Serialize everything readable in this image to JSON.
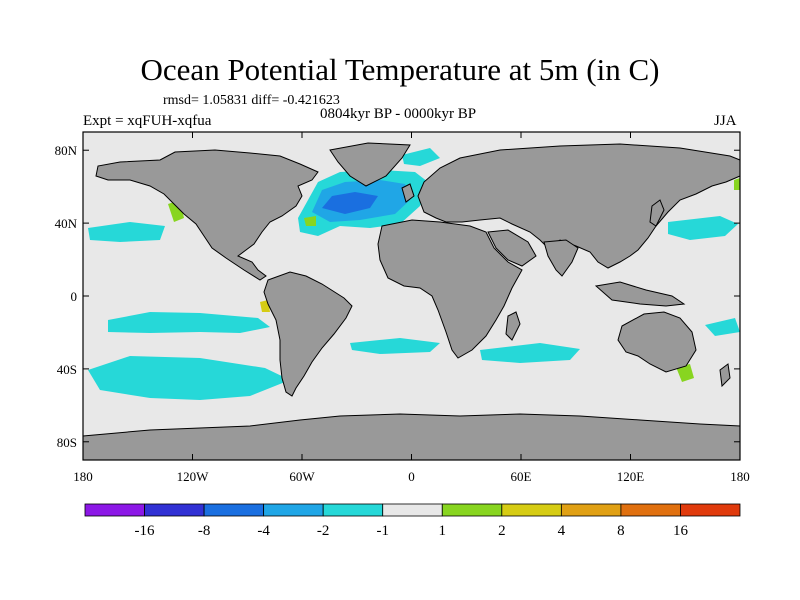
{
  "header": {
    "title": "Ocean Potential Temperature at 5m (in C)",
    "stats": "rmsd= 1.05831 diff= -0.421623",
    "experiment": "Expt = xqFUH-xqfua",
    "period": "0804kyr BP - 0000kyr BP",
    "season": "JJA"
  },
  "colors": {
    "ocean_neutral": "#e8e8e8",
    "land": "#999999",
    "coast": "#000000"
  },
  "chart_data": {
    "type": "heatmap",
    "title": "Ocean Potential Temperature at 5m (in C)",
    "xlabel": "",
    "ylabel": "",
    "xlim": [
      -180,
      180
    ],
    "ylim": [
      -90,
      90
    ],
    "x_ticks": [
      {
        "value": -180,
        "label": "180"
      },
      {
        "value": -120,
        "label": "120W"
      },
      {
        "value": -60,
        "label": "60W"
      },
      {
        "value": 0,
        "label": "0"
      },
      {
        "value": 60,
        "label": "60E"
      },
      {
        "value": 120,
        "label": "120E"
      },
      {
        "value": 180,
        "label": "180"
      }
    ],
    "y_ticks": [
      {
        "value": 80,
        "label": "80N"
      },
      {
        "value": 40,
        "label": "40N"
      },
      {
        "value": 0,
        "label": "0"
      },
      {
        "value": -40,
        "label": "40S"
      },
      {
        "value": -80,
        "label": "80S"
      }
    ],
    "colorbar": {
      "colors": [
        "#8c17e6",
        "#3131d4",
        "#1a6fe0",
        "#20a6e6",
        "#26d8d8",
        "#e8e8e8",
        "#88d520",
        "#d6cc14",
        "#e0a014",
        "#e0700f",
        "#e03a0c"
      ],
      "labels": [
        "-16",
        "-8",
        "-4",
        "-2",
        "-1",
        "1",
        "2",
        "4",
        "8",
        "16"
      ]
    }
  }
}
